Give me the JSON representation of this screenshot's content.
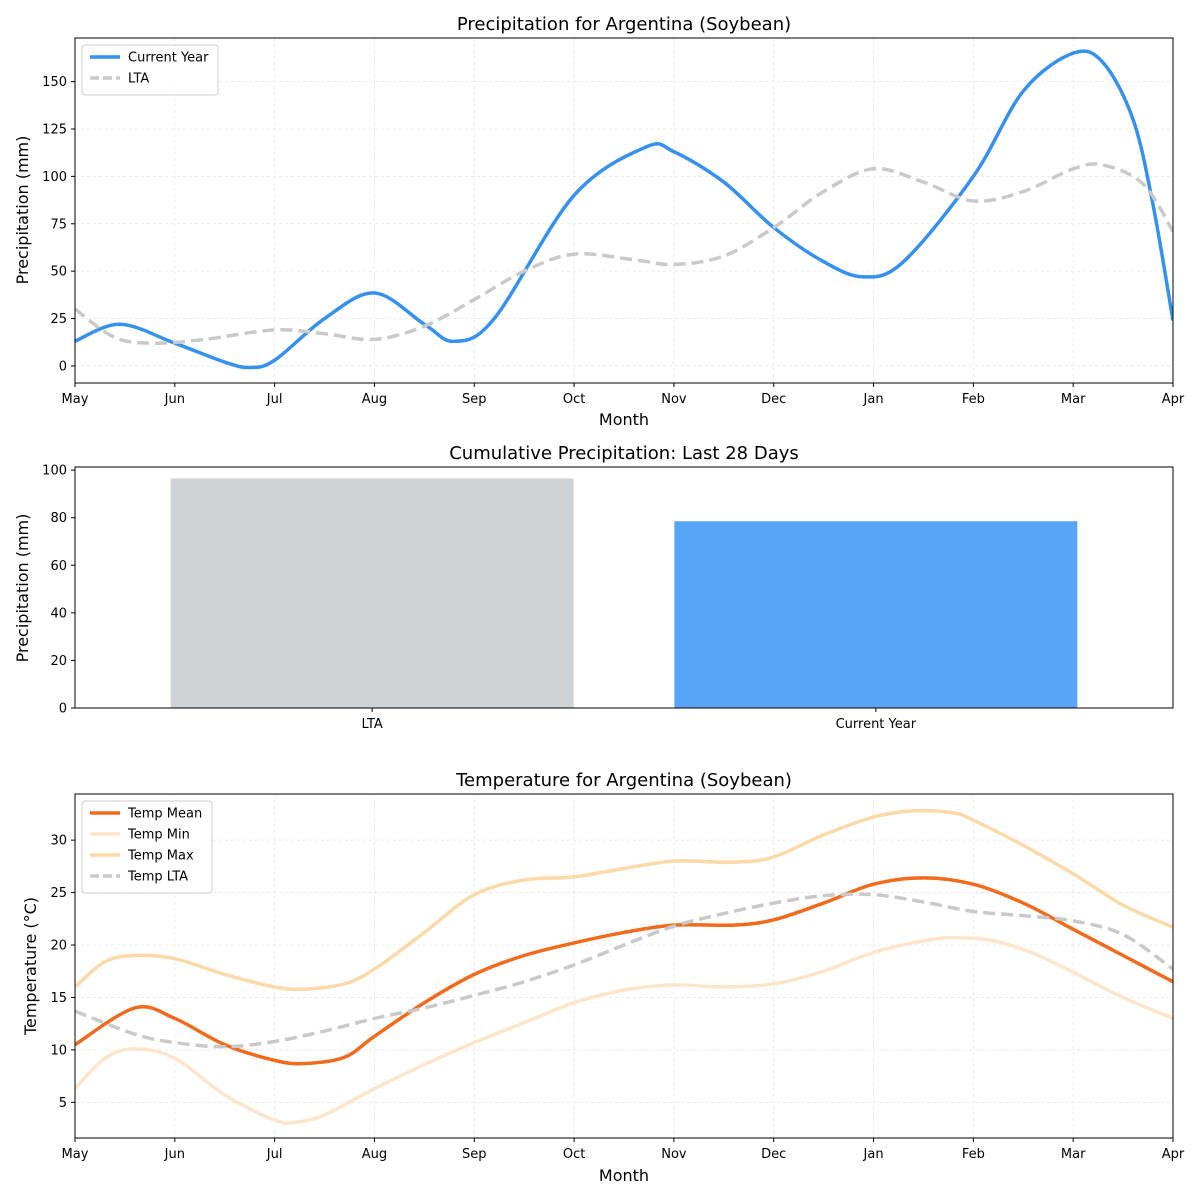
{
  "charts": {
    "precip_line": {
      "title": "Precipitation for Argentina (Soybean)",
      "xlabel": "Month",
      "ylabel": "Precipitation (mm)"
    },
    "cumulative": {
      "title": "Cumulative Precipitation: Last 28 Days",
      "ylabel": "Precipitation (mm)"
    },
    "temperature": {
      "title": "Temperature for Argentina (Soybean)",
      "xlabel": "Month",
      "ylabel": "Temperature (°C)"
    }
  },
  "chart_data": [
    {
      "type": "line",
      "title": "Precipitation for Argentina (Soybean)",
      "xlabel": "Month",
      "ylabel": "Precipitation (mm)",
      "x_ticks": [
        "May",
        "Jun",
        "Jul",
        "Aug",
        "Sep",
        "Oct",
        "Nov",
        "Dec",
        "Jan",
        "Feb",
        "Mar",
        "Apr"
      ],
      "y_ticks": [
        0,
        25,
        50,
        75,
        100,
        125,
        150
      ],
      "xlim": [
        0,
        11
      ],
      "ylim": [
        -9,
        173
      ],
      "grid": true,
      "legend_position": "top-left",
      "series": [
        {
          "name": "Current Year",
          "color": "#3590ef",
          "style": "solid",
          "points": [
            [
              0,
              13
            ],
            [
              0.45,
              22
            ],
            [
              1,
              12
            ],
            [
              1.5,
              2
            ],
            [
              1.75,
              -0.8
            ],
            [
              2,
              3
            ],
            [
              2.5,
              25
            ],
            [
              3,
              38.5
            ],
            [
              3.5,
              22
            ],
            [
              3.8,
              13
            ],
            [
              4.2,
              25
            ],
            [
              5,
              90
            ],
            [
              5.72,
              115.5
            ],
            [
              6,
              113
            ],
            [
              6.5,
              97
            ],
            [
              7,
              73
            ],
            [
              7.5,
              55
            ],
            [
              7.9,
              47
            ],
            [
              8.3,
              55
            ],
            [
              9,
              100
            ],
            [
              9.5,
              145
            ],
            [
              10,
              165
            ],
            [
              10.3,
              160
            ],
            [
              10.6,
              130
            ],
            [
              10.8,
              85
            ],
            [
              11,
              24
            ]
          ]
        },
        {
          "name": "LTA",
          "color": "#c8c9cb",
          "style": "dashed",
          "points": [
            [
              0,
              30
            ],
            [
              0.4,
              15
            ],
            [
              0.8,
              12
            ],
            [
              1.3,
              14
            ],
            [
              2,
              19
            ],
            [
              2.5,
              17
            ],
            [
              3,
              14
            ],
            [
              3.5,
              21
            ],
            [
              4,
              35
            ],
            [
              4.5,
              50
            ],
            [
              5,
              59
            ],
            [
              5.6,
              56
            ],
            [
              6,
              53.5
            ],
            [
              6.5,
              58
            ],
            [
              7,
              73
            ],
            [
              7.5,
              92
            ],
            [
              8,
              104
            ],
            [
              8.5,
              97
            ],
            [
              9,
              87
            ],
            [
              9.5,
              92
            ],
            [
              10,
              104
            ],
            [
              10.3,
              106
            ],
            [
              10.7,
              96
            ],
            [
              11,
              71
            ]
          ]
        }
      ]
    },
    {
      "type": "bar",
      "title": "Cumulative Precipitation: Last 28 Days",
      "xlabel": "",
      "ylabel": "Precipitation (mm)",
      "categories": [
        "LTA",
        "Current Year"
      ],
      "values": [
        96.5,
        78.5
      ],
      "colors": [
        "#d0d3d6",
        "#58a5f8"
      ],
      "y_ticks": [
        0,
        20,
        40,
        60,
        80,
        100
      ],
      "ylim": [
        0,
        101.3
      ],
      "grid": false
    },
    {
      "type": "line",
      "title": "Temperature for Argentina (Soybean)",
      "xlabel": "Month",
      "ylabel": "Temperature (°C)",
      "x_ticks": [
        "May",
        "Jun",
        "Jul",
        "Aug",
        "Sep",
        "Oct",
        "Nov",
        "Dec",
        "Jan",
        "Feb",
        "Mar",
        "Apr"
      ],
      "y_ticks": [
        5,
        10,
        15,
        20,
        25,
        30
      ],
      "xlim": [
        0,
        11
      ],
      "ylim": [
        1.6,
        34.4
      ],
      "grid": true,
      "legend_position": "top-left",
      "series": [
        {
          "name": "Temp Mean",
          "color": "#f26a1c",
          "style": "solid",
          "points": [
            [
              0,
              10.5
            ],
            [
              0.6,
              14
            ],
            [
              1,
              13
            ],
            [
              1.5,
              10.5
            ],
            [
              2,
              9
            ],
            [
              2.3,
              8.7
            ],
            [
              2.7,
              9.3
            ],
            [
              3,
              11.3
            ],
            [
              3.5,
              14.5
            ],
            [
              4,
              17.2
            ],
            [
              4.5,
              19
            ],
            [
              5,
              20.2
            ],
            [
              5.5,
              21.2
            ],
            [
              6,
              21.9
            ],
            [
              6.6,
              21.9
            ],
            [
              7,
              22.4
            ],
            [
              7.5,
              24
            ],
            [
              8,
              25.8
            ],
            [
              8.5,
              26.4
            ],
            [
              9,
              25.8
            ],
            [
              9.5,
              24
            ],
            [
              10,
              21.5
            ],
            [
              10.5,
              19
            ],
            [
              11,
              16.5
            ]
          ]
        },
        {
          "name": "Temp Min",
          "color": "#fde5cc",
          "style": "solid",
          "points": [
            [
              0,
              6.3
            ],
            [
              0.3,
              9.2
            ],
            [
              0.6,
              10.1
            ],
            [
              1,
              9.2
            ],
            [
              1.5,
              5.7
            ],
            [
              2,
              3.3
            ],
            [
              2.2,
              3.1
            ],
            [
              2.5,
              3.8
            ],
            [
              3,
              6.3
            ],
            [
              3.5,
              8.6
            ],
            [
              4,
              10.7
            ],
            [
              4.5,
              12.6
            ],
            [
              5,
              14.5
            ],
            [
              5.5,
              15.7
            ],
            [
              6,
              16.2
            ],
            [
              6.5,
              16
            ],
            [
              7,
              16.3
            ],
            [
              7.5,
              17.5
            ],
            [
              8,
              19.3
            ],
            [
              8.5,
              20.4
            ],
            [
              8.8,
              20.7
            ],
            [
              9.2,
              20.4
            ],
            [
              9.6,
              19.2
            ],
            [
              10,
              17.4
            ],
            [
              10.5,
              15
            ],
            [
              11,
              13
            ]
          ]
        },
        {
          "name": "Temp Max",
          "color": "#fbd9a9",
          "style": "solid",
          "points": [
            [
              0,
              16
            ],
            [
              0.3,
              18.4
            ],
            [
              0.6,
              19
            ],
            [
              1,
              18.7
            ],
            [
              1.5,
              17.2
            ],
            [
              2,
              16
            ],
            [
              2.3,
              15.8
            ],
            [
              2.7,
              16.3
            ],
            [
              3,
              17.7
            ],
            [
              3.5,
              21.2
            ],
            [
              4,
              24.8
            ],
            [
              4.5,
              26.2
            ],
            [
              5,
              26.5
            ],
            [
              5.5,
              27.3
            ],
            [
              6,
              28
            ],
            [
              6.6,
              27.9
            ],
            [
              7,
              28.4
            ],
            [
              7.5,
              30.5
            ],
            [
              8,
              32.2
            ],
            [
              8.4,
              32.8
            ],
            [
              8.8,
              32.6
            ],
            [
              9,
              31.9
            ],
            [
              9.5,
              29.5
            ],
            [
              10,
              26.8
            ],
            [
              10.5,
              23.8
            ],
            [
              11,
              21.7
            ]
          ]
        },
        {
          "name": "Temp LTA",
          "color": "#c8c9cb",
          "style": "dashed",
          "points": [
            [
              0,
              13.7
            ],
            [
              0.6,
              11.5
            ],
            [
              1,
              10.7
            ],
            [
              1.5,
              10.3
            ],
            [
              2,
              10.8
            ],
            [
              2.5,
              11.8
            ],
            [
              3,
              13
            ],
            [
              3.5,
              14
            ],
            [
              4,
              15.2
            ],
            [
              4.5,
              16.5
            ],
            [
              5,
              18.1
            ],
            [
              5.5,
              20
            ],
            [
              6,
              21.8
            ],
            [
              6.5,
              23
            ],
            [
              7,
              24
            ],
            [
              7.5,
              24.7
            ],
            [
              8,
              24.8
            ],
            [
              8.5,
              24.1
            ],
            [
              9,
              23.2
            ],
            [
              9.5,
              22.8
            ],
            [
              10,
              22.3
            ],
            [
              10.5,
              21
            ],
            [
              11,
              17.7
            ]
          ]
        }
      ]
    }
  ]
}
